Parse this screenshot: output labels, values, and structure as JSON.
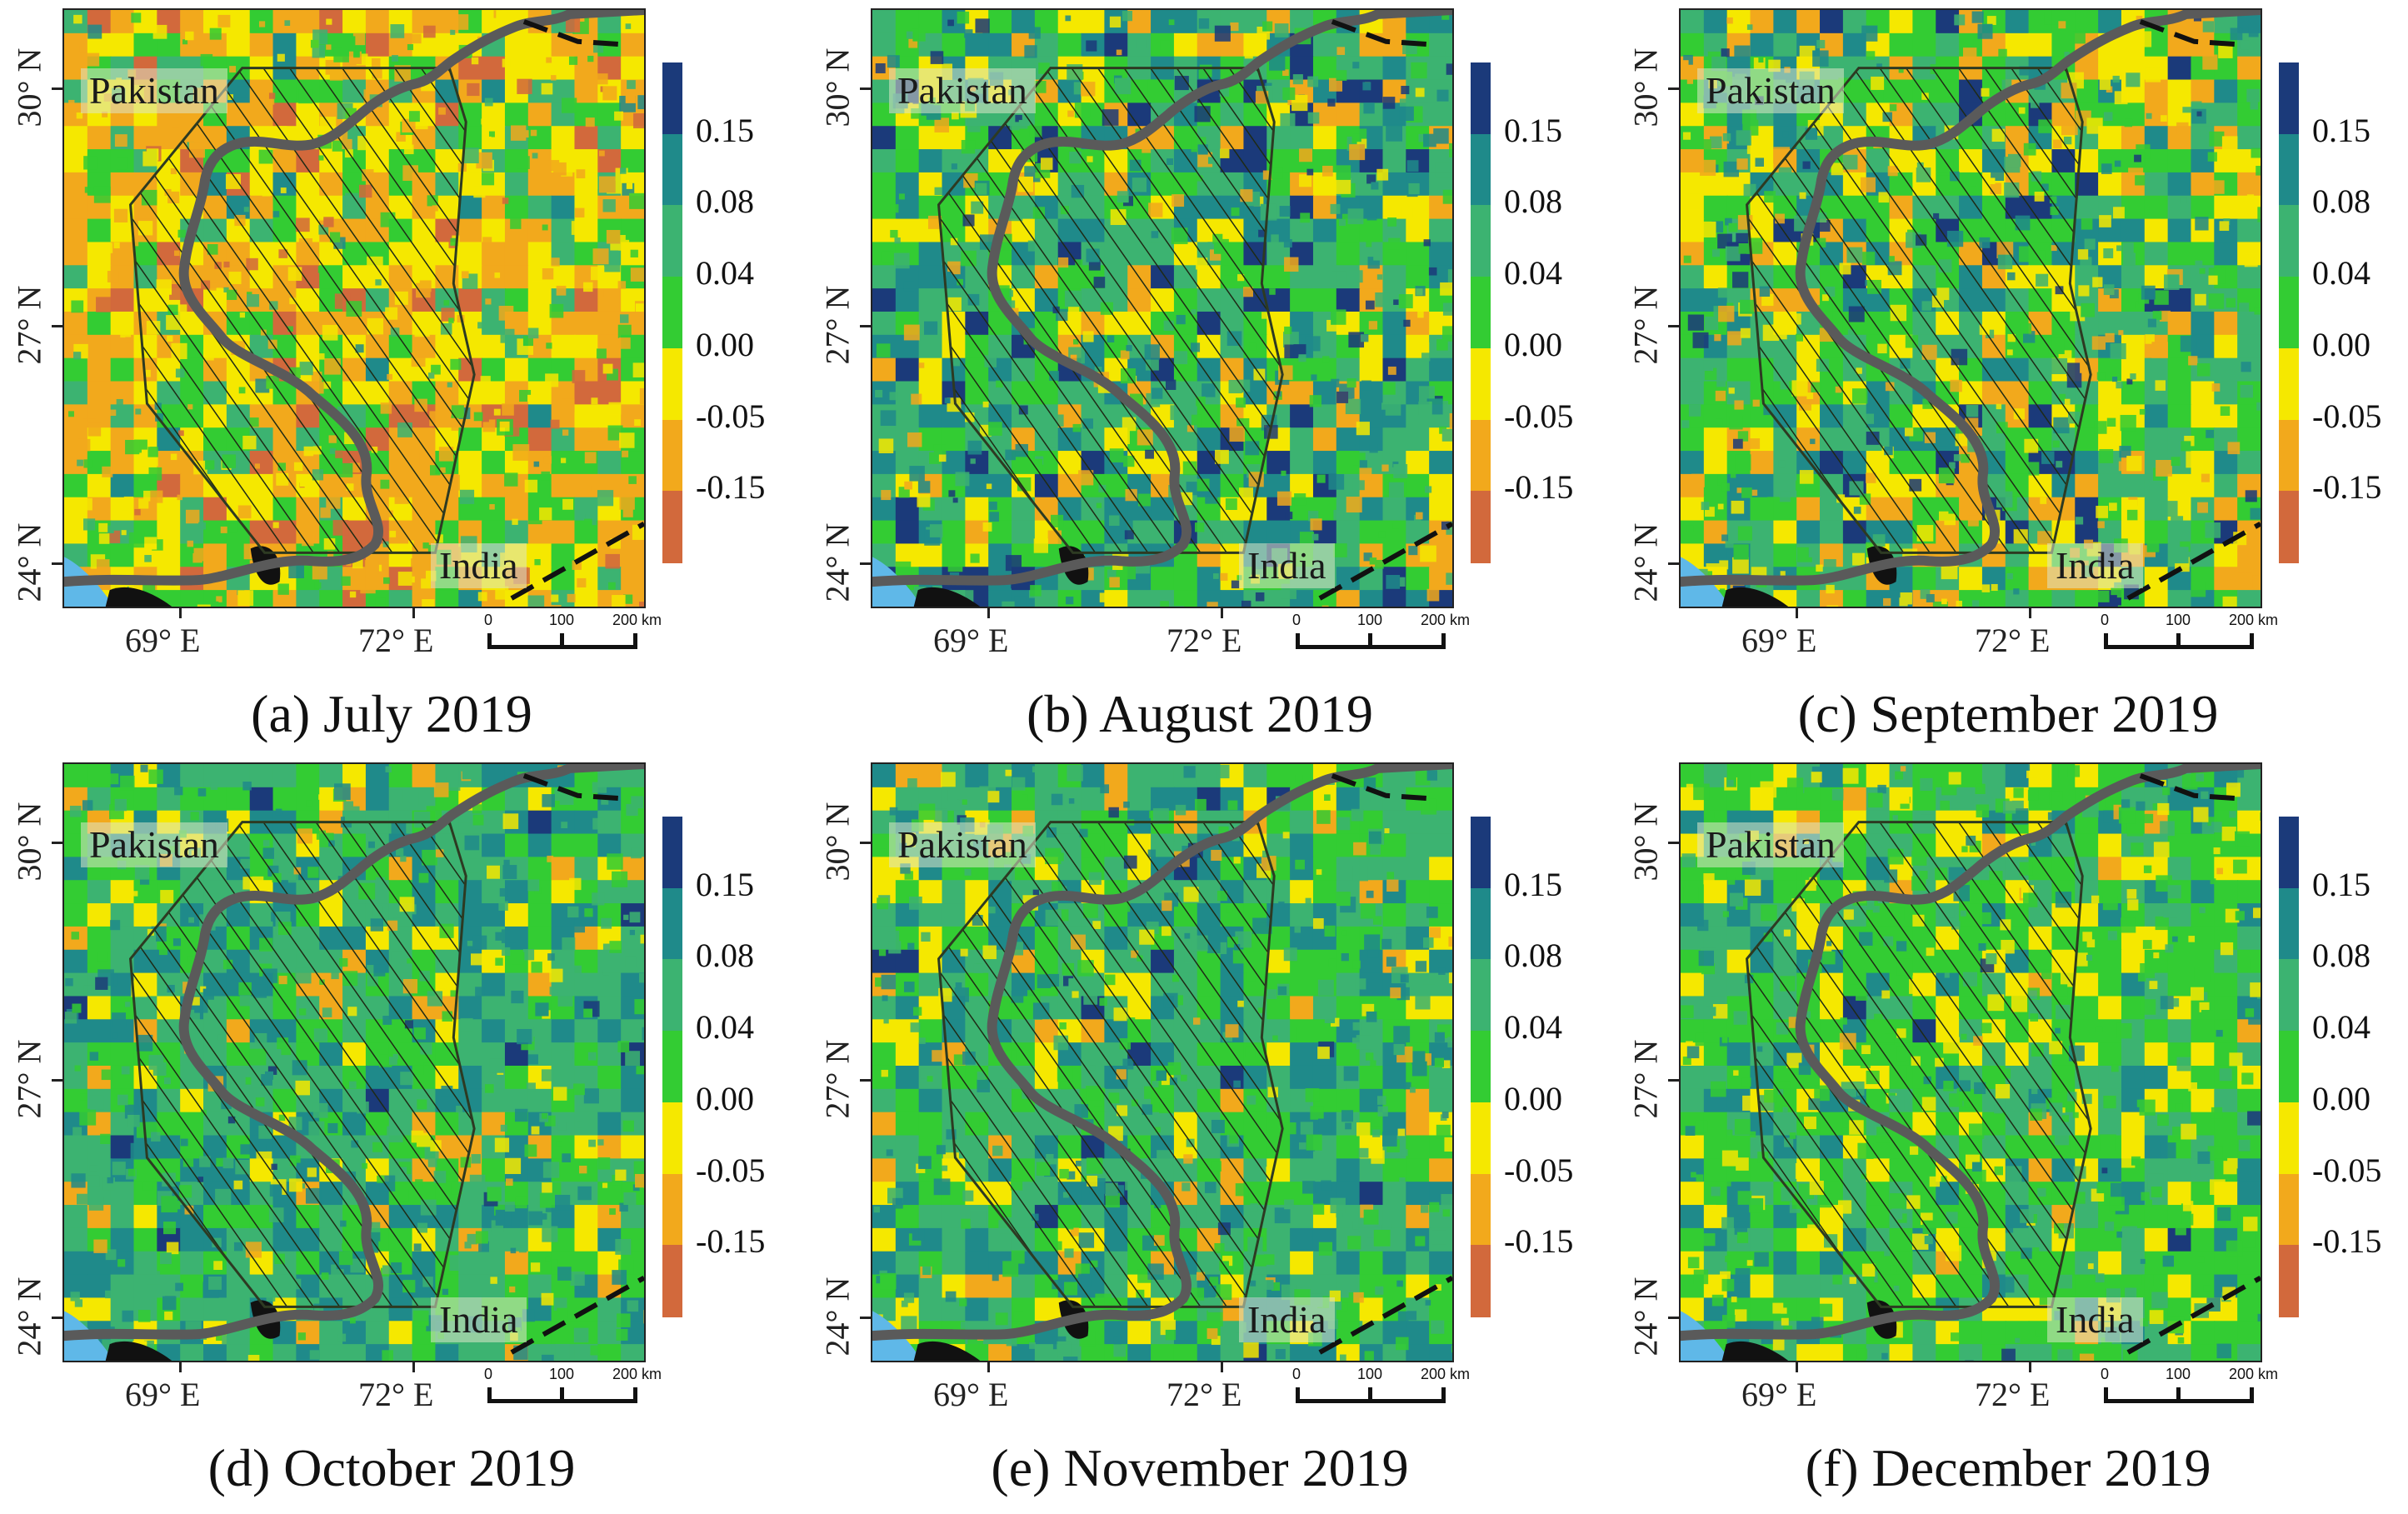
{
  "panels": [
    {
      "caption": "(a) July 2019",
      "palette": "dry"
    },
    {
      "caption": "(b) August 2019",
      "palette": "wet"
    },
    {
      "caption": "(c) September 2019",
      "palette": "mixed"
    },
    {
      "caption": "(d) October 2019",
      "palette": "green"
    },
    {
      "caption": "(e) November 2019",
      "palette": "green"
    },
    {
      "caption": "(f) December 2019",
      "palette": "lime"
    }
  ],
  "labels": {
    "country_north": "Pakistan",
    "country_south": "India",
    "lat_top": "30° N",
    "lat_mid": "27° N",
    "lat_bottom": "24° N",
    "lon_left": "69° E",
    "lon_right": "72° E"
  },
  "legend": {
    "ticks": [
      "0.15",
      "0.08",
      "0.04",
      "0.00",
      "-0.05",
      "-0.15"
    ],
    "colors": [
      "#1b3a7a",
      "#1f8a8a",
      "#3cb371",
      "#33cc33",
      "#f5e800",
      "#f2a91c",
      "#d2693c"
    ]
  },
  "scale_bar": {
    "zero": "0",
    "mid": "100",
    "end": "200 km"
  },
  "colors": {
    "river": "#5a5a5a",
    "hatch_outline": "#2d3a22",
    "sea": "#5fb8e8",
    "border_dash": "#111111"
  }
}
